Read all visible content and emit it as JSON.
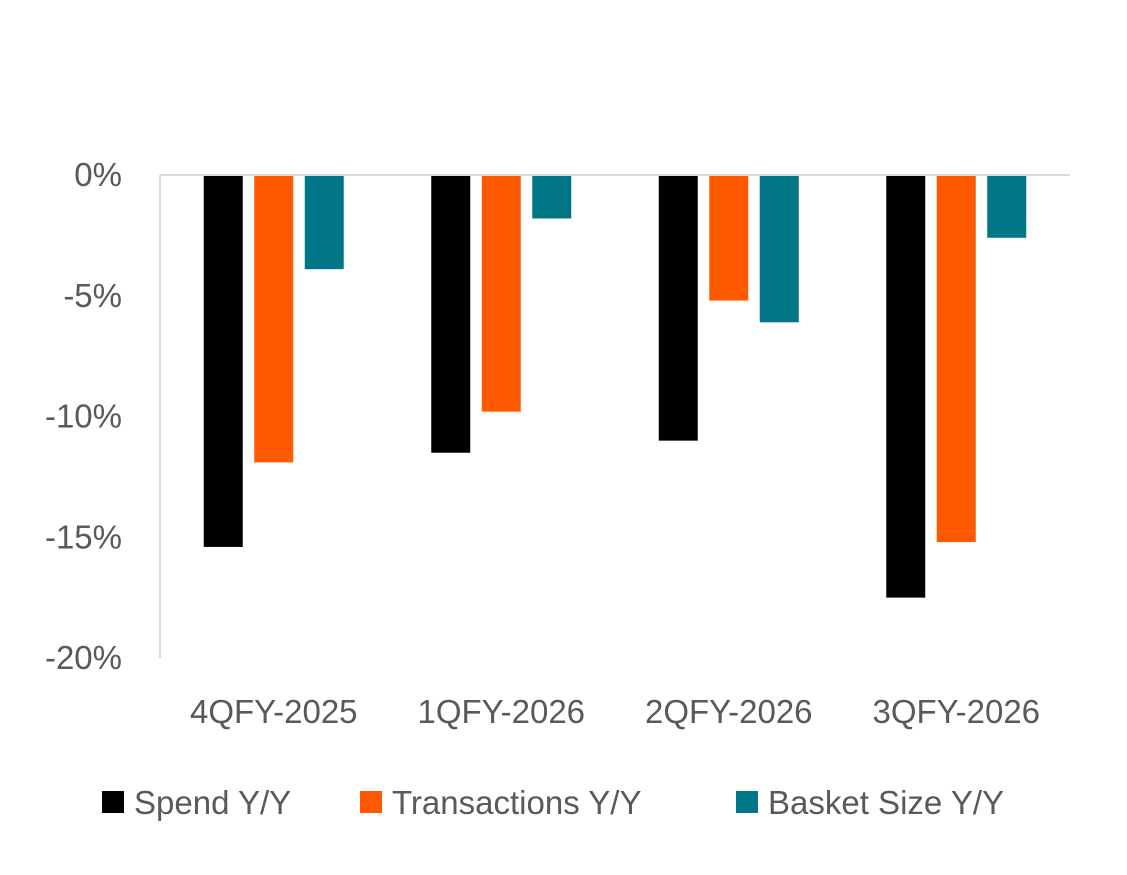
{
  "chart_data": {
    "type": "bar",
    "title": "",
    "xlabel": "",
    "ylabel": "",
    "categories": [
      "4QFY-2025",
      "1QFY-2026",
      "2QFY-2026",
      "3QFY-2026"
    ],
    "series": [
      {
        "name": "Spend Y/Y",
        "color": "#000000",
        "values": [
          -15.4,
          -11.5,
          -11.0,
          -17.5
        ]
      },
      {
        "name": "Transactions Y/Y",
        "color": "#FF5A00",
        "values": [
          -11.9,
          -9.8,
          -5.2,
          -15.2
        ]
      },
      {
        "name": "Basket Size Y/Y",
        "color": "#007687",
        "values": [
          -3.9,
          -1.8,
          -6.1,
          -2.6
        ]
      }
    ],
    "ylim": [
      -20,
      0
    ],
    "yticks": [
      0,
      -5,
      -10,
      -15,
      -20
    ],
    "ytick_labels": [
      "0%",
      "-5%",
      "-10%",
      "-15%",
      "-20%"
    ],
    "grid": false,
    "legend_position": "bottom"
  }
}
